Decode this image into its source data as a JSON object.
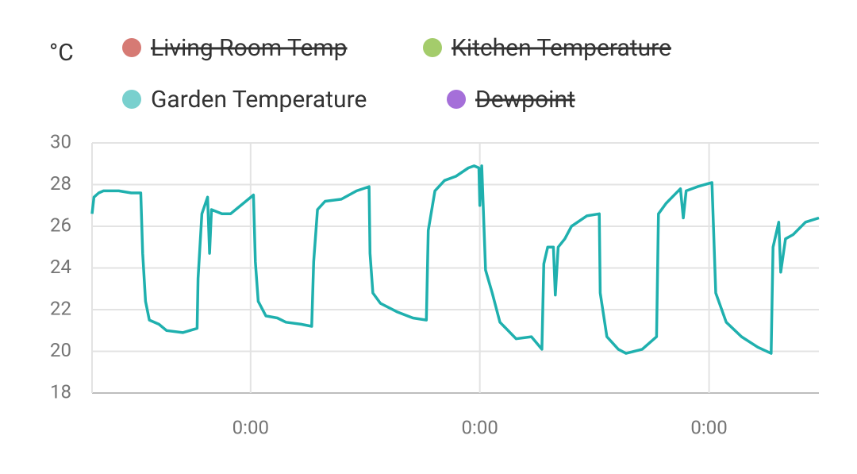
{
  "chart_data": {
    "type": "line",
    "y_label": "°C",
    "x": [
      0,
      0.2,
      0.7,
      1.2,
      2.8,
      4.1,
      5.1,
      5.3,
      5.6,
      6.0,
      7.0,
      7.8,
      9.5,
      11.0,
      11.1,
      11.5,
      12.1,
      12.3,
      12.5,
      13.6,
      14.5,
      15.3,
      16.9,
      17.1,
      17.4,
      18.2,
      19.4,
      20.3,
      21.9,
      23.0,
      23.2,
      23.6,
      24.4,
      26.1,
      27.7,
      29.0,
      29.1,
      29.4,
      30.2,
      31.9,
      33.6,
      35.0,
      35.2,
      35.9,
      36.9,
      38.1,
      39.4,
      40.0,
      40.5,
      40.6,
      40.8,
      41.2,
      41.9,
      42.7,
      44.4,
      46.0,
      47.1,
      47.3,
      47.7,
      48.3,
      48.5,
      48.8,
      49.5,
      50.2,
      51.8,
      53.1,
      53.2,
      53.9,
      55.1,
      55.9,
      57.6,
      59.1,
      59.3,
      60.1,
      61.6,
      61.9,
      62.2,
      63.4,
      64.9,
      65.3,
      66.4,
      68.0,
      69.7,
      71.1,
      71.3,
      71.9,
      72.1,
      72.6,
      73.4,
      74.7,
      76.1
    ],
    "series": [
      {
        "name": "Living Room Temp",
        "color": "#d67a74",
        "hidden": true
      },
      {
        "name": "Kitchen Temperature",
        "color": "#a4cc6b",
        "hidden": true
      },
      {
        "name": "Garden Temperature",
        "color": "#1fb0ae",
        "hidden": false,
        "values": [
          26.6,
          27.4,
          27.6,
          27.7,
          27.7,
          27.6,
          27.6,
          24.7,
          22.4,
          21.5,
          21.3,
          21.0,
          20.9,
          21.1,
          23.5,
          26.6,
          27.4,
          24.7,
          26.8,
          26.6,
          26.6,
          26.9,
          27.5,
          24.3,
          22.4,
          21.7,
          21.6,
          21.4,
          21.3,
          21.2,
          24.3,
          26.8,
          27.2,
          27.3,
          27.7,
          27.9,
          24.7,
          22.8,
          22.3,
          21.9,
          21.6,
          21.5,
          25.8,
          27.7,
          28.2,
          28.4,
          28.8,
          28.9,
          28.8,
          27.0,
          28.9,
          23.9,
          22.8,
          21.4,
          20.6,
          20.7,
          20.1,
          24.2,
          25.0,
          25.0,
          22.7,
          25.0,
          25.4,
          26.0,
          26.5,
          26.6,
          22.8,
          20.7,
          20.1,
          19.9,
          20.1,
          20.7,
          26.6,
          27.1,
          27.8,
          26.4,
          27.7,
          27.9,
          28.1,
          22.8,
          21.4,
          20.7,
          20.2,
          19.9,
          25.0,
          26.2,
          23.8,
          25.4,
          25.6,
          26.2,
          26.4
        ]
      },
      {
        "name": "Dewpoint",
        "color": "#a56fd9",
        "hidden": true
      }
    ],
    "xlim": [
      0,
      76.1
    ],
    "xticks": [
      {
        "value": 16.6,
        "label": "0:00"
      },
      {
        "value": 40.6,
        "label": "0:00"
      },
      {
        "value": 64.6,
        "label": "0:00"
      }
    ],
    "ylim": [
      18,
      30
    ],
    "yticks": [
      18,
      20,
      22,
      24,
      26,
      28,
      30
    ],
    "grid": true
  }
}
